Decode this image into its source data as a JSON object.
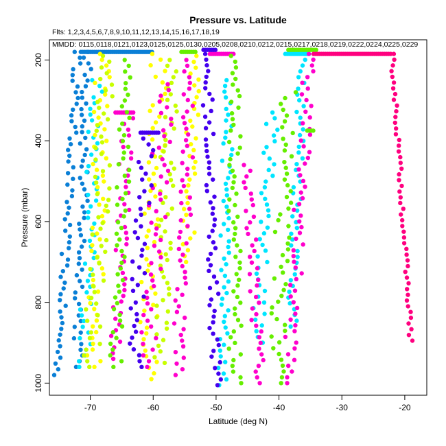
{
  "chart_data": {
    "type": "scatter",
    "title": "Pressure vs. Latitude",
    "subtitle_flights": "Flts: 1,2,3,4,5,6,7,8,9,10,11,12,13,14,15,16,17,18,19",
    "subtitle_dates": "MMDD: 0115,0118,0121,0123,0125,0125,0130,0205,0208,0210,0212,0215,0217,0218,0219,0222,0224,0225,0229",
    "xlabel": "Latitude (deg N)",
    "ylabel": "Pressure (mbar)",
    "xlim": [
      -76.5,
      -16.5
    ],
    "ylim": [
      1030,
      150
    ],
    "y_reversed": true,
    "xticks": [
      -70,
      -60,
      -50,
      -40,
      -30,
      -20
    ],
    "yticks": [
      200,
      400,
      600,
      800,
      1000
    ],
    "grid": false,
    "legend": "none",
    "series": [
      {
        "color": "#0a7fd6",
        "profiles": [
          {
            "lat_top": -72,
            "lat_bottom": -75.2,
            "p_top": 180,
            "p_bottom": 980,
            "wiggle": 0.6
          },
          {
            "lat_top": -70.5,
            "lat_bottom": -72.0,
            "p_top": 180,
            "p_bottom": 960,
            "wiggle": 0.8
          }
        ],
        "cruise": [
          {
            "p": 180,
            "lat_from": -71.5,
            "lat_to": -60
          }
        ]
      },
      {
        "color": "#00e5ff",
        "profiles": [
          {
            "lat_top": -69,
            "lat_bottom": -71,
            "p_top": 250,
            "p_bottom": 960,
            "wiggle": 1.0
          },
          {
            "lat_top": -48,
            "lat_bottom": -49,
            "p_top": 250,
            "p_bottom": 1005,
            "wiggle": 0.8
          },
          {
            "lat_top": -41,
            "lat_bottom": -43.5,
            "p_top": 330,
            "p_bottom": 900,
            "wiggle": 1.0
          },
          {
            "lat_top": -36,
            "lat_bottom": -38,
            "p_top": 185,
            "p_bottom": 860,
            "wiggle": 0.8
          }
        ],
        "cruise": [
          {
            "p": 185,
            "lat_from": -39,
            "lat_to": -35
          }
        ]
      },
      {
        "color": "#ffff00",
        "profiles": [
          {
            "lat_top": -68,
            "lat_bottom": -69.5,
            "p_top": 185,
            "p_bottom": 960,
            "wiggle": 1.2
          },
          {
            "lat_top": -59,
            "lat_bottom": -61,
            "p_top": 185,
            "p_bottom": 990,
            "wiggle": 1.5
          },
          {
            "lat_top": -53.5,
            "lat_bottom": -54.5,
            "p_top": 190,
            "p_bottom": 700,
            "wiggle": 1.0
          }
        ],
        "cruise": []
      },
      {
        "color": "#c8ff00",
        "profiles": [
          {
            "lat_top": -67,
            "lat_bottom": -70,
            "p_top": 190,
            "p_bottom": 960,
            "wiggle": 1.4
          },
          {
            "lat_top": -57,
            "lat_bottom": -59,
            "p_top": 200,
            "p_bottom": 950,
            "wiggle": 1.2
          }
        ],
        "cruise": []
      },
      {
        "color": "#ff00cc",
        "profiles": [
          {
            "lat_top": -64,
            "lat_bottom": -66,
            "p_top": 330,
            "p_bottom": 940,
            "wiggle": 1.0
          },
          {
            "lat_top": -58,
            "lat_bottom": -61,
            "p_top": 260,
            "p_bottom": 960,
            "wiggle": 1.4
          },
          {
            "lat_top": -54,
            "lat_bottom": -56,
            "p_top": 200,
            "p_bottom": 980,
            "wiggle": 1.0
          },
          {
            "lat_top": -45,
            "lat_bottom": -43,
            "p_top": 460,
            "p_bottom": 1000,
            "wiggle": 0.8
          },
          {
            "lat_top": -35,
            "lat_bottom": -38.5,
            "p_top": 185,
            "p_bottom": 1000,
            "wiggle": 1.0
          }
        ],
        "cruise": [
          {
            "p": 330,
            "lat_from": -66,
            "lat_to": -63
          },
          {
            "p": 185,
            "lat_from": -51,
            "lat_to": -47
          }
        ]
      },
      {
        "color": "#4400ee",
        "profiles": [
          {
            "lat_top": -61,
            "lat_bottom": -63,
            "p_top": 380,
            "p_bottom": 960,
            "wiggle": 1.2
          },
          {
            "lat_top": -51.5,
            "lat_bottom": -50,
            "p_top": 185,
            "p_bottom": 1005,
            "wiggle": 0.8
          }
        ],
        "cruise": [
          {
            "p": 380,
            "lat_from": -62,
            "lat_to": -59
          },
          {
            "p": 175,
            "lat_from": -52,
            "lat_to": -50
          }
        ]
      },
      {
        "color": "#66ee00",
        "profiles": [
          {
            "lat_top": -64,
            "lat_bottom": -66,
            "p_top": 200,
            "p_bottom": 960,
            "wiggle": 1.0
          },
          {
            "lat_top": -47,
            "lat_bottom": -47,
            "p_top": 190,
            "p_bottom": 1000,
            "wiggle": 1.0
          },
          {
            "lat_top": -38.5,
            "lat_bottom": -40.5,
            "p_top": 280,
            "p_bottom": 1000,
            "wiggle": 1.2
          }
        ],
        "cruise": [
          {
            "p": 180,
            "lat_from": -55.5,
            "lat_to": -53
          },
          {
            "p": 175,
            "lat_from": -38.5,
            "lat_to": -34
          },
          {
            "p": 375,
            "lat_from": -35.5,
            "lat_to": -34.5
          }
        ]
      },
      {
        "color": "#ff007f",
        "profiles": [
          {
            "lat_top": -22,
            "lat_bottom": -19,
            "p_top": 185,
            "p_bottom": 895,
            "wiggle": 0.3
          }
        ],
        "cruise": [
          {
            "p": 185,
            "lat_from": -34.5,
            "lat_to": -22
          }
        ]
      }
    ]
  }
}
